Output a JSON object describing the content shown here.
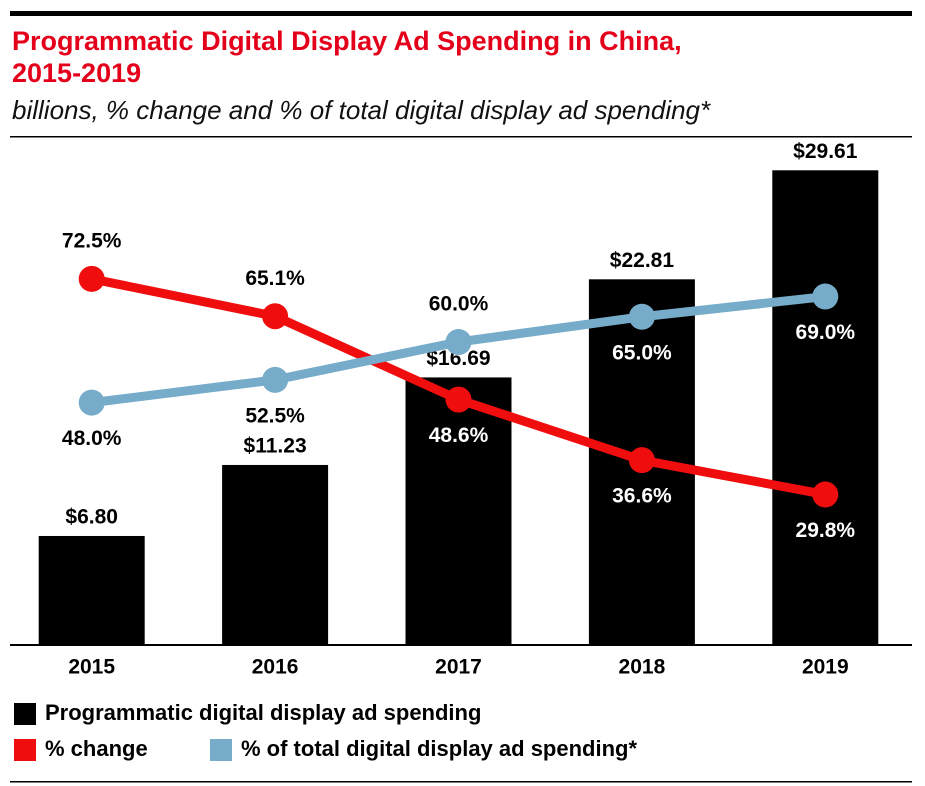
{
  "chart_data": {
    "type": "bar",
    "title": [
      "Programmatic Digital Display Ad Spending in China,",
      "2015-2019"
    ],
    "subtitle": "billions, % change and % of total digital display ad spending*",
    "categories": [
      "2015",
      "2016",
      "2017",
      "2018",
      "2019"
    ],
    "ylim": [
      0,
      31.5
    ],
    "y2lim": [
      0,
      100
    ],
    "series": [
      {
        "name": "Programmatic digital display ad spending",
        "type": "bar",
        "color": "#000000",
        "values": [
          6.8,
          11.23,
          16.69,
          22.81,
          29.61
        ],
        "value_labels": [
          "$6.80",
          "$11.23",
          "$16.69",
          "$22.81",
          "$29.61"
        ]
      },
      {
        "name": "% change",
        "type": "line",
        "axis": "y2",
        "color": "#f00d0d",
        "values": [
          72.5,
          65.1,
          48.6,
          36.6,
          29.8
        ],
        "value_labels": [
          "72.5%",
          "65.1%",
          "48.6%",
          "36.6%",
          "29.8%"
        ]
      },
      {
        "name": "% of total digital display ad spending*",
        "type": "line",
        "axis": "y2",
        "color": "#76abc9",
        "values": [
          48.0,
          52.5,
          60.0,
          65.0,
          69.0
        ],
        "value_labels": [
          "48.0%",
          "52.5%",
          "60.0%",
          "65.0%",
          "69.0%"
        ]
      }
    ]
  }
}
